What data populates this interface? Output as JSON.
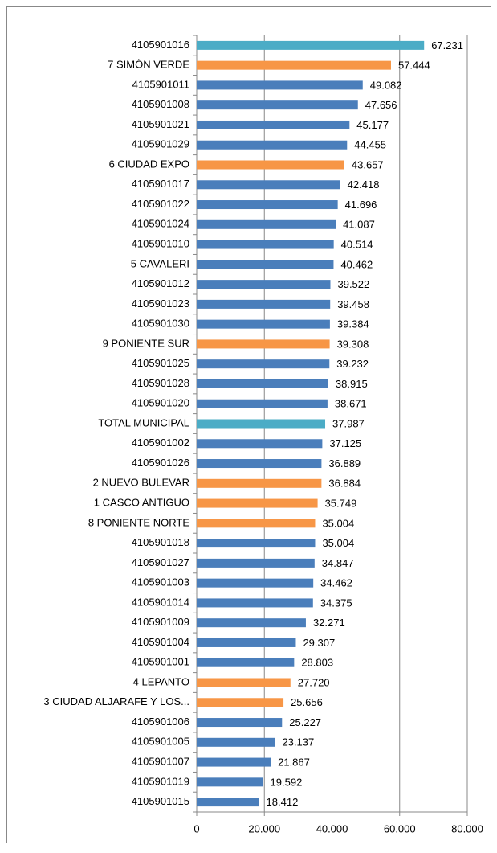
{
  "chart_data": {
    "type": "barh",
    "categories": [
      "4105901016",
      "7 SIMÓN VERDE",
      "4105901011",
      "4105901008",
      "4105901021",
      "4105901029",
      "6 CIUDAD EXPO",
      "4105901017",
      "4105901022",
      "4105901024",
      "4105901010",
      "5 CAVALERI",
      "4105901012",
      "4105901023",
      "4105901030",
      "9 PONIENTE SUR",
      "4105901025",
      "4105901028",
      "4105901020",
      "TOTAL MUNICIPAL",
      "4105901002",
      "4105901026",
      "2 NUEVO BULEVAR",
      "1 CASCO ANTIGUO",
      "8 PONIENTE NORTE",
      "4105901018",
      "4105901027",
      "4105901003",
      "4105901014",
      "4105901009",
      "4105901004",
      "4105901001",
      "4 LEPANTO",
      "3 CIUDAD ALJARAFE Y LOS...",
      "4105901006",
      "4105901005",
      "4105901007",
      "4105901019",
      "4105901015"
    ],
    "values": [
      67231,
      57444,
      49082,
      47656,
      45177,
      44455,
      43657,
      42418,
      41696,
      41087,
      40514,
      40462,
      39522,
      39458,
      39384,
      39308,
      39232,
      38915,
      38671,
      37987,
      37125,
      36889,
      36884,
      35749,
      35004,
      35004,
      34847,
      34462,
      34375,
      32271,
      29307,
      28803,
      27720,
      25656,
      25227,
      23137,
      21867,
      19592,
      18412
    ],
    "value_labels": [
      "67.231",
      "57.444",
      "49.082",
      "47.656",
      "45.177",
      "44.455",
      "43.657",
      "42.418",
      "41.696",
      "41.087",
      "40.514",
      "40.462",
      "39.522",
      "39.458",
      "39.384",
      "39.308",
      "39.232",
      "38.915",
      "38.671",
      "37.987",
      "37.125",
      "36.889",
      "36.884",
      "35.749",
      "35.004",
      "35.004",
      "34.847",
      "34.462",
      "34.375",
      "32.271",
      "29.307",
      "28.803",
      "27.720",
      "25.656",
      "25.227",
      "23.137",
      "21.867",
      "19.592",
      "18.412"
    ],
    "colors": [
      "#4bacc6",
      "#f79646",
      "#4a7ebb",
      "#4a7ebb",
      "#4a7ebb",
      "#4a7ebb",
      "#f79646",
      "#4a7ebb",
      "#4a7ebb",
      "#4a7ebb",
      "#4a7ebb",
      "#4a7ebb",
      "#4a7ebb",
      "#4a7ebb",
      "#4a7ebb",
      "#f79646",
      "#4a7ebb",
      "#4a7ebb",
      "#4a7ebb",
      "#4bacc6",
      "#4a7ebb",
      "#4a7ebb",
      "#f79646",
      "#f79646",
      "#f79646",
      "#4a7ebb",
      "#4a7ebb",
      "#4a7ebb",
      "#4a7ebb",
      "#4a7ebb",
      "#4a7ebb",
      "#4a7ebb",
      "#f79646",
      "#f79646",
      "#4a7ebb",
      "#4a7ebb",
      "#4a7ebb",
      "#4a7ebb",
      "#4a7ebb"
    ],
    "xlim": [
      0,
      80000
    ],
    "xticks": [
      0,
      {
        "value": 20000,
        "label": "20.000"
      },
      {
        "value": 40000,
        "label": "40.000"
      },
      {
        "value": 60000,
        "label": "60.000"
      },
      {
        "value": 80000,
        "label": "80.000"
      }
    ],
    "grid": true
  }
}
